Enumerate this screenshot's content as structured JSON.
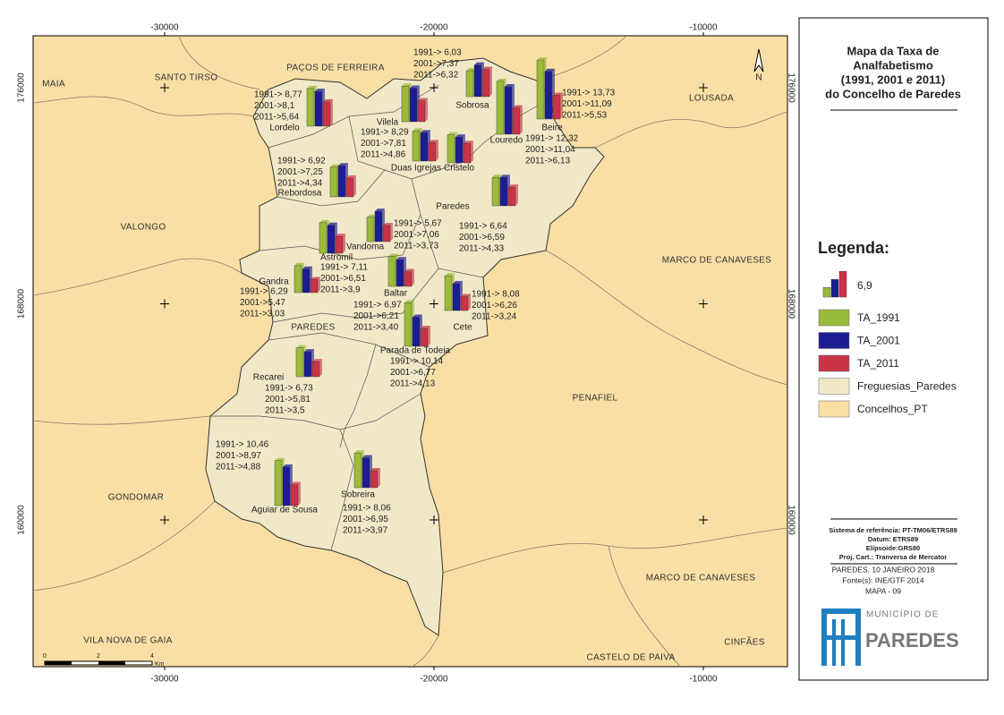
{
  "map": {
    "xticks": [
      -30000,
      -20000,
      -10000
    ],
    "yticks": [
      176000,
      168000,
      160000
    ],
    "north": "N",
    "neighbors": [
      "MAIA",
      "SANTO TIRSO",
      "PAÇOS DE FERREIRA",
      "LOUSADA",
      "VALONGO",
      "MARCO DE CANAVESES",
      "PAREDES",
      "PENAFIEL",
      "GONDOMAR",
      "MARCO DE CANAVESES",
      "VILA NOVA DE GAIA",
      "CASTELO DE PAIVA",
      "CINFÃES"
    ],
    "scale_bar": {
      "ticks": [
        "0",
        "2",
        "4"
      ],
      "unit": "Km"
    },
    "parishes": [
      {
        "name": "Lordelo",
        "labels": [
          "1991-> 8,77",
          "2001->8,1",
          "2011->5,64"
        ],
        "values": [
          8.77,
          8.1,
          5.64
        ]
      },
      {
        "name": "Vilela",
        "labels": [
          "1991-> 8,29",
          "2001->7,81",
          "2011->4,86"
        ],
        "values": [
          8.29,
          7.81,
          4.86
        ]
      },
      {
        "name": "Sobrosa",
        "labels": [
          "1991-> 6,03",
          "2001->7,37",
          "2011->6,32"
        ],
        "values": [
          6.03,
          7.37,
          6.32
        ]
      },
      {
        "name": "Beire",
        "labels": [
          "1991-> 13,73",
          "2001->11,09",
          "2011->5,53"
        ],
        "values": [
          13.73,
          11.09,
          5.53
        ]
      },
      {
        "name": "Louredo",
        "labels": [
          "1991-> 12,32",
          "2001->11,04",
          "2011->6,13"
        ],
        "values": [
          12.32,
          11.04,
          6.13
        ]
      },
      {
        "name": "Duas Igrejas",
        "values": [
          7.0,
          6.6,
          4.3
        ]
      },
      {
        "name": "Cristelo",
        "values": [
          6.5,
          6.0,
          4.5
        ]
      },
      {
        "name": "Rebordosa",
        "labels": [
          "1991-> 6,92",
          "2001->7,25",
          "2011->4,34"
        ],
        "values": [
          6.92,
          7.25,
          4.34
        ]
      },
      {
        "name": "Paredes",
        "labels": [
          "1991-> 6,64",
          "2001->6,59",
          "2011->4,33"
        ],
        "values": [
          6.64,
          6.59,
          4.33
        ]
      },
      {
        "name": "Vandoma",
        "labels": [
          "1991-> 5,67",
          "2001->7,06",
          "2011->3,73"
        ],
        "values": [
          5.67,
          7.06,
          3.73
        ]
      },
      {
        "name": "Astromil",
        "labels": [
          "1991-> 7,11",
          "2001->6,51",
          "2011->3,9"
        ],
        "values": [
          7.11,
          6.51,
          3.9
        ]
      },
      {
        "name": "Gandra",
        "labels": [
          "1991-> 6,29",
          "2001->5,47",
          "2011->3,03"
        ],
        "values": [
          6.29,
          5.47,
          3.03
        ]
      },
      {
        "name": "Baltar",
        "labels": [
          "1991-> 6,97",
          "2001->6,21",
          "2011->3,40"
        ],
        "values": [
          6.97,
          6.21,
          3.4
        ]
      },
      {
        "name": "Cete",
        "labels": [
          "1991-> 8,08",
          "2001->6,26",
          "2011->3,24"
        ],
        "values": [
          8.08,
          6.26,
          3.24
        ]
      },
      {
        "name": "Parada de Todeia",
        "labels": [
          "1991-> 10,14",
          "2001->6,77",
          "2011->4,13"
        ],
        "values": [
          10.14,
          6.77,
          4.13
        ]
      },
      {
        "name": "Recarei",
        "labels": [
          "1991-> 6,73",
          "2001->5,81",
          "2011->3,5"
        ],
        "values": [
          6.73,
          5.81,
          3.5
        ]
      },
      {
        "name": "Aguiar de Sousa",
        "labels": [
          "1991-> 10,46",
          "2001->8,97",
          "2011->4,88"
        ],
        "values": [
          10.46,
          8.97,
          4.88
        ]
      },
      {
        "name": "Sobreira",
        "labels": [
          "1991-> 8,06",
          "2001->6,95",
          "2011->3,97"
        ],
        "values": [
          8.06,
          6.95,
          3.97
        ]
      }
    ]
  },
  "legend": {
    "title": [
      "Mapa da Taxa de",
      "Analfabetismo",
      "(1991, 2001 e 2011)",
      "do Concelho de Paredes"
    ],
    "heading": "Legenda:",
    "size_label": "6,9",
    "series": [
      {
        "name": "TA_1991",
        "color": "#9bbb3a"
      },
      {
        "name": "TA_2001",
        "color": "#1c1c94"
      },
      {
        "name": "TA_2011",
        "color": "#c93348"
      }
    ],
    "layers": [
      {
        "name": "Freguesias_Paredes",
        "color": "#f1e8c8"
      },
      {
        "name": "Concelhos_PT",
        "color": "#f9dfa5"
      }
    ],
    "reference": [
      "Sistema de referência: PT-TM06/ETRS89",
      "Datum: ETRS89",
      "Elipsoide:GRS80",
      "Proj. Cart.: Tranversa de Mercator"
    ],
    "credits": [
      "PAREDES, 10 JANEIRO 2018",
      "Fonte(s): INE/GTF 2014",
      "MAPA - 09"
    ],
    "logo": {
      "top": "MUNICÍPIO DE",
      "name": "PAREDES"
    }
  }
}
